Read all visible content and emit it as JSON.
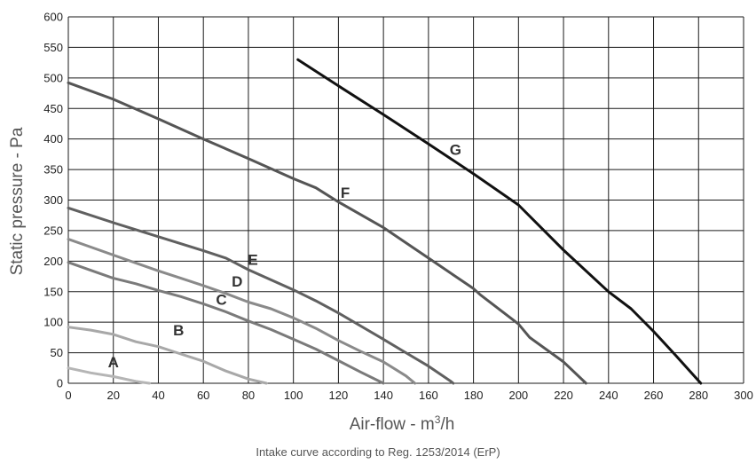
{
  "chart_data": {
    "type": "line",
    "title": "",
    "caption": "Intake curve according to Reg. 1253/2014 (ErP)",
    "xlabel_main": "Air-flow - m",
    "xlabel_sup": "3",
    "xlabel_end": "/h",
    "ylabel": "Static pressure - Pa",
    "xlim": [
      0,
      300
    ],
    "ylim": [
      0,
      600
    ],
    "x_ticks": [
      "0",
      "20",
      "40",
      "60",
      "80",
      "100",
      "120",
      "140",
      "160",
      "180",
      "200",
      "220",
      "240",
      "260",
      "280",
      "300"
    ],
    "y_ticks": [
      "0",
      "50",
      "100",
      "150",
      "200",
      "250",
      "300",
      "350",
      "400",
      "450",
      "500",
      "550",
      "600"
    ],
    "grid": true,
    "series": [
      {
        "name": "A",
        "color": "#b5b5b5",
        "label_at": [
          20,
          35
        ],
        "x": [
          0,
          10,
          20,
          30,
          36
        ],
        "y": [
          25,
          17,
          11,
          3,
          0
        ]
      },
      {
        "name": "B",
        "color": "#a8a8a8",
        "label_at": [
          49,
          87
        ],
        "x": [
          0,
          10,
          20,
          30,
          40,
          50,
          60,
          70,
          80,
          88
        ],
        "y": [
          92,
          87,
          80,
          68,
          60,
          48,
          36,
          20,
          7,
          0
        ]
      },
      {
        "name": "C",
        "color": "#7a7a7a",
        "label_at": [
          68,
          137
        ],
        "x": [
          0,
          10,
          20,
          30,
          40,
          50,
          60,
          70,
          80,
          90,
          100,
          110,
          120,
          130,
          140
        ],
        "y": [
          198,
          185,
          172,
          163,
          152,
          142,
          130,
          117,
          102,
          88,
          72,
          56,
          37,
          18,
          0
        ]
      },
      {
        "name": "D",
        "color": "#8a8a8a",
        "label_at": [
          75,
          167
        ],
        "x": [
          0,
          10,
          20,
          30,
          40,
          50,
          60,
          70,
          80,
          90,
          100,
          110,
          120,
          130,
          140,
          150,
          154
        ],
        "y": [
          236,
          223,
          210,
          197,
          184,
          172,
          160,
          147,
          133,
          122,
          107,
          90,
          70,
          52,
          35,
          12,
          0
        ]
      },
      {
        "name": "E",
        "color": "#606060",
        "label_at": [
          82,
          203
        ],
        "x": [
          0,
          20,
          40,
          60,
          70,
          80,
          100,
          110,
          120,
          140,
          150,
          160,
          170,
          171
        ],
        "y": [
          287,
          263,
          240,
          217,
          205,
          186,
          153,
          135,
          115,
          72,
          50,
          28,
          3,
          0
        ]
      },
      {
        "name": "F",
        "color": "#555555",
        "label_at": [
          123,
          312
        ],
        "x": [
          0,
          20,
          40,
          60,
          80,
          100,
          110,
          120,
          140,
          160,
          180,
          183,
          200,
          205,
          220,
          230
        ],
        "y": [
          492,
          465,
          433,
          400,
          368,
          335,
          320,
          297,
          255,
          205,
          155,
          145,
          97,
          75,
          35,
          0
        ]
      },
      {
        "name": "G",
        "color": "#111111",
        "label_at": [
          172,
          383
        ],
        "x": [
          102,
          120,
          140,
          160,
          180,
          200,
          220,
          240,
          250,
          260,
          270,
          281
        ],
        "y": [
          530,
          487,
          440,
          392,
          343,
          292,
          218,
          150,
          122,
          85,
          45,
          0
        ]
      }
    ]
  }
}
